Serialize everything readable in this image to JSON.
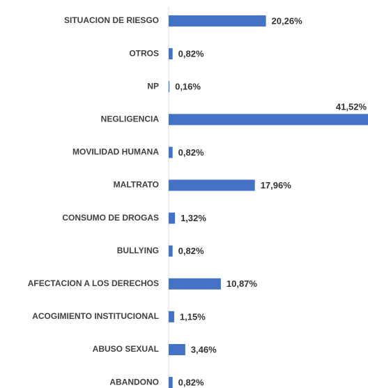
{
  "chart_data": {
    "type": "bar",
    "orientation": "horizontal",
    "categories": [
      "SITUACION DE RIESGO",
      "OTROS",
      "NP",
      "NEGLIGENCIA",
      "MOVILIDAD HUMANA",
      "MALTRATO",
      "CONSUMO DE DROGAS",
      "BULLYING",
      "AFECTACION A LOS DERECHOS",
      "ACOGIMIENTO INSTITUCIONAL",
      "ABUSO SEXUAL",
      "ABANDONO"
    ],
    "values": [
      20.26,
      0.82,
      0.16,
      41.52,
      0.82,
      17.96,
      1.32,
      0.82,
      10.87,
      1.15,
      3.46,
      0.82
    ],
    "value_labels": [
      "20,26%",
      "0,82%",
      "0,16%",
      "41,52%",
      "0,82%",
      "17,96%",
      "1,32%",
      "0,82%",
      "10,87%",
      "1,15%",
      "3,46%",
      "0,82%"
    ],
    "color": "#4472c4"
  }
}
